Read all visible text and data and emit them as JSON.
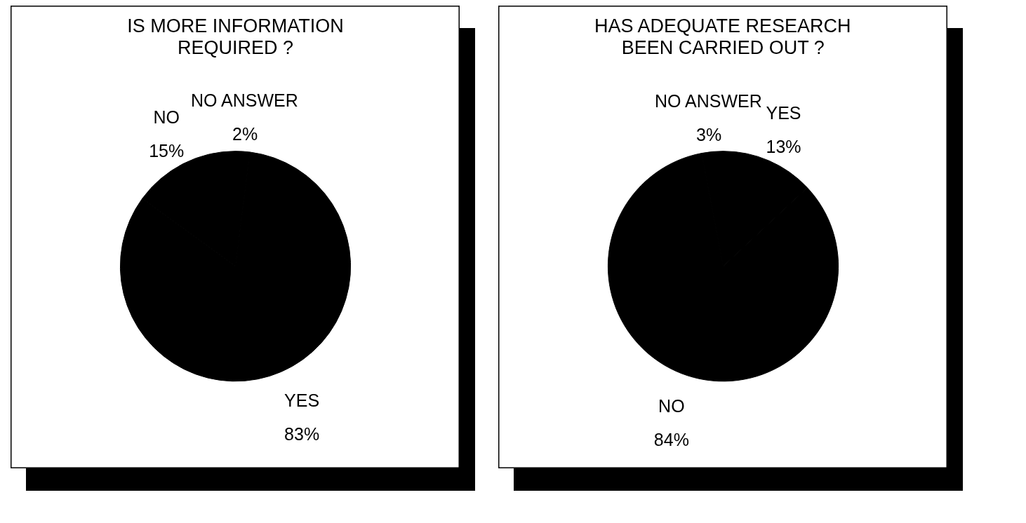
{
  "chart_data": [
    {
      "type": "pie",
      "title": "IS MORE INFORMATION\nREQUIRED ?",
      "categories": [
        "NO ANSWER",
        "YES",
        "NO"
      ],
      "values": [
        2,
        83,
        15
      ],
      "colors": [
        "#000000",
        "#000000",
        "#000000"
      ],
      "value_labels": [
        "2%",
        "83%",
        "15%"
      ],
      "legend": false
    },
    {
      "type": "pie",
      "title": "HAS ADEQUATE RESEARCH\nBEEN CARRIED OUT ?",
      "categories": [
        "YES",
        "NO",
        "NO ANSWER"
      ],
      "values": [
        13,
        84,
        3
      ],
      "colors": [
        "#000000",
        "#000000",
        "#000000"
      ],
      "value_labels": [
        "13%",
        "84%",
        "3%"
      ],
      "legend": false
    }
  ]
}
